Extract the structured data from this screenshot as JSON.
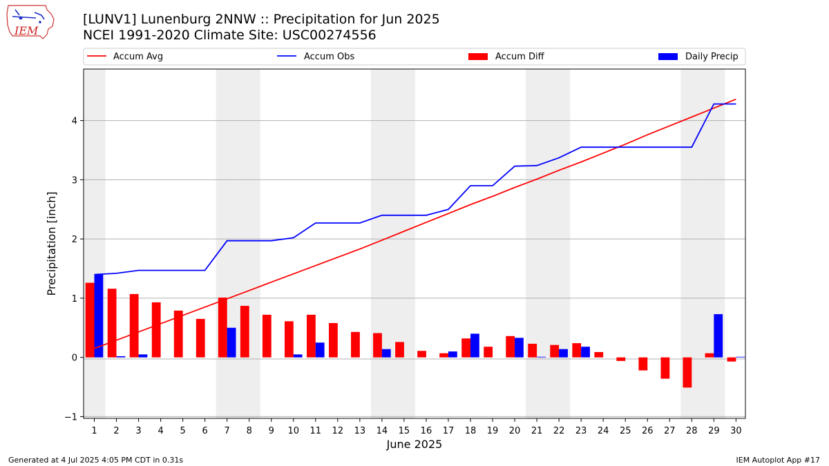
{
  "header": {
    "title_line1": "[LUNV1] Lunenburg 2NNW :: Precipitation for Jun 2025",
    "title_line2": "NCEI 1991-2020 Climate Site: USC00274556"
  },
  "logo": {
    "text": "IEM"
  },
  "footer": {
    "generated": "Generated at 4 Jul 2025 4:05 PM CDT in 0.31s",
    "app": "IEM Autoplot App #17"
  },
  "colors": {
    "accum_avg": "#ff0000",
    "accum_obs": "#0000ff",
    "accum_diff": "#ff0000",
    "daily_precip": "#0000ff",
    "weekend_shade": "#eeeeee",
    "grid": "#b0b0b0"
  },
  "chart_data": {
    "type": "bar",
    "xlabel": "June 2025",
    "ylabel": "Precipitation [inch]",
    "ylim": [
      -1.03,
      4.87
    ],
    "yticks": [
      -1,
      0,
      1,
      2,
      3,
      4
    ],
    "grid": "horizontal",
    "legend_placement": "top",
    "categories": [
      "1",
      "2",
      "3",
      "4",
      "5",
      "6",
      "7",
      "8",
      "9",
      "10",
      "11",
      "12",
      "13",
      "14",
      "15",
      "16",
      "17",
      "18",
      "19",
      "20",
      "21",
      "22",
      "23",
      "24",
      "25",
      "26",
      "27",
      "28",
      "29",
      "30"
    ],
    "shaded_days": [
      1,
      7,
      8,
      14,
      15,
      21,
      22,
      28,
      29
    ],
    "series": [
      {
        "name": "Accum Avg",
        "kind": "line",
        "values": [
          0.15,
          0.29,
          0.43,
          0.57,
          0.71,
          0.85,
          0.99,
          1.13,
          1.27,
          1.41,
          1.55,
          1.69,
          1.83,
          1.98,
          2.13,
          2.28,
          2.43,
          2.58,
          2.72,
          2.87,
          3.01,
          3.16,
          3.3,
          3.45,
          3.6,
          3.76,
          3.91,
          4.06,
          4.21,
          4.36
        ]
      },
      {
        "name": "Accum Obs",
        "kind": "line",
        "values": [
          1.4,
          1.42,
          1.47,
          1.47,
          1.47,
          1.47,
          1.97,
          1.97,
          1.97,
          2.02,
          2.27,
          2.27,
          2.27,
          2.4,
          2.4,
          2.4,
          2.5,
          2.9,
          2.9,
          3.23,
          3.24,
          3.37,
          3.55,
          3.55,
          3.55,
          3.55,
          3.55,
          3.55,
          4.28,
          4.28
        ]
      },
      {
        "name": "Accum Diff",
        "kind": "bar",
        "values": [
          1.26,
          1.16,
          1.07,
          0.93,
          0.79,
          0.65,
          1.01,
          0.87,
          0.72,
          0.61,
          0.72,
          0.58,
          0.43,
          0.41,
          0.26,
          0.11,
          0.07,
          0.32,
          0.18,
          0.36,
          0.23,
          0.21,
          0.24,
          0.09,
          -0.06,
          -0.22,
          -0.36,
          -0.51,
          0.07,
          -0.07
        ]
      },
      {
        "name": "Daily Precip",
        "kind": "bar",
        "values": [
          1.4,
          0.02,
          0.05,
          0.0,
          0.0,
          0.0,
          0.5,
          0.0,
          0.0,
          0.05,
          0.25,
          0.0,
          0.0,
          0.14,
          0.0,
          0.0,
          0.1,
          0.4,
          0.0,
          0.33,
          0.01,
          0.14,
          0.18,
          0.0,
          0.0,
          0.0,
          0.0,
          0.0,
          0.73,
          0.01
        ]
      }
    ]
  }
}
